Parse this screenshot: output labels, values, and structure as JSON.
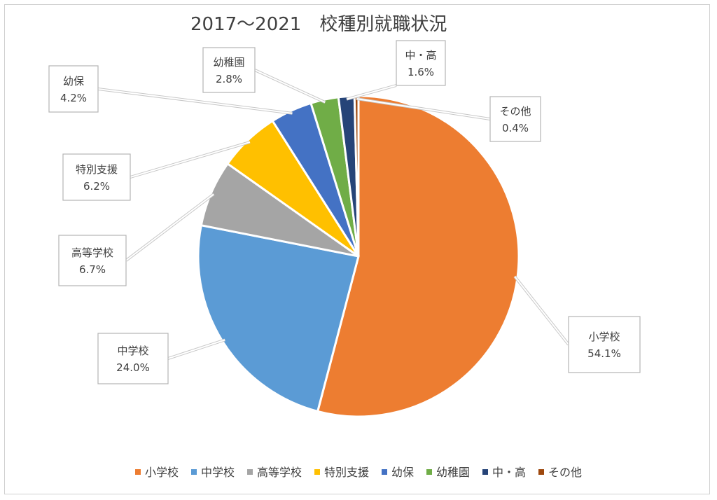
{
  "chart_data": {
    "type": "pie",
    "title": "2017～2021　校種別就職状況",
    "series": [
      {
        "values": [
          54.1,
          24.0,
          6.7,
          6.2,
          4.2,
          2.8,
          1.6,
          0.4
        ]
      }
    ],
    "categories": [
      "小学校",
      "中学校",
      "高等学校",
      "特別支援",
      "幼保",
      "幼稚園",
      "中・高",
      "その他"
    ],
    "data_labels": [
      "54.1%",
      "24.0%",
      "6.7%",
      "6.2%",
      "4.2%",
      "2.8%",
      "1.6%",
      "0.4%"
    ],
    "colors": [
      "#ED7D31",
      "#5B9BD5",
      "#A5A5A5",
      "#FFC000",
      "#4472C4",
      "#70AD47",
      "#264478",
      "#9E480E"
    ],
    "legend_position": "bottom"
  }
}
